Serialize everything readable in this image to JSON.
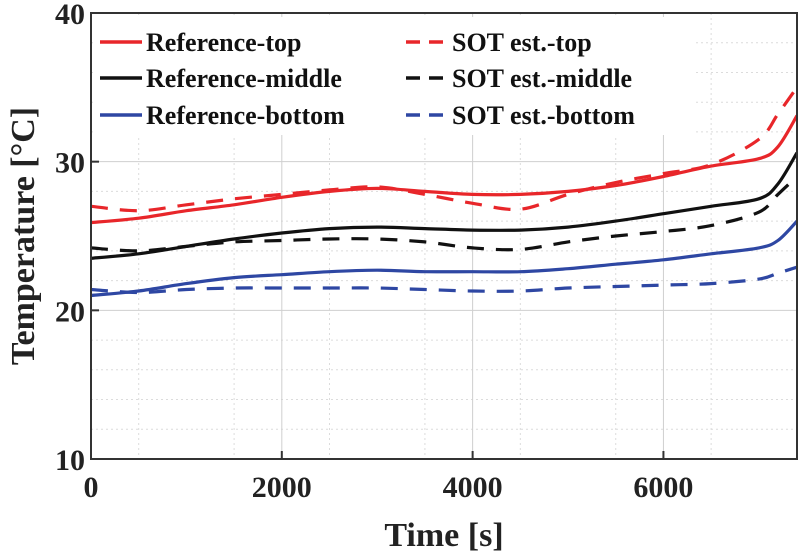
{
  "chart_data": {
    "type": "line",
    "xlabel": "Time [s]",
    "ylabel": "Temperature [°C]",
    "xlim": [
      0,
      7400
    ],
    "ylim": [
      10,
      40
    ],
    "xticks": [
      "0",
      "2000",
      "4000",
      "6000"
    ],
    "yticks": [
      "10",
      "20",
      "30",
      "40"
    ],
    "grid": true,
    "minor_grid": true,
    "legend_position": "top-left",
    "x": [
      0,
      500,
      1000,
      1500,
      2000,
      2500,
      3000,
      3500,
      4000,
      4500,
      5000,
      5500,
      6000,
      6500,
      7000,
      7200,
      7400
    ],
    "series": [
      {
        "name": "Reference-top",
        "color": "#e8262a",
        "dash": "solid",
        "values": [
          25.9,
          26.2,
          26.7,
          27.1,
          27.6,
          28.0,
          28.2,
          28.0,
          27.8,
          27.8,
          28.0,
          28.4,
          29.0,
          29.7,
          30.2,
          31.0,
          33.1
        ]
      },
      {
        "name": "SOT est.-top",
        "color": "#e8262a",
        "dash": "dashed",
        "values": [
          27.0,
          26.7,
          27.1,
          27.5,
          27.8,
          28.1,
          28.3,
          27.8,
          27.2,
          26.8,
          27.8,
          28.6,
          29.2,
          29.8,
          31.5,
          33.2,
          35.0
        ]
      },
      {
        "name": "Reference-middle",
        "color": "#111111",
        "dash": "solid",
        "values": [
          23.5,
          23.8,
          24.3,
          24.8,
          25.2,
          25.5,
          25.6,
          25.5,
          25.4,
          25.4,
          25.6,
          26.0,
          26.5,
          27.0,
          27.5,
          28.5,
          30.6
        ]
      },
      {
        "name": "SOT est.-middle",
        "color": "#111111",
        "dash": "dashed",
        "values": [
          24.2,
          24.0,
          24.3,
          24.6,
          24.7,
          24.8,
          24.8,
          24.6,
          24.2,
          24.1,
          24.6,
          25.0,
          25.3,
          25.7,
          26.6,
          27.8,
          29.0
        ]
      },
      {
        "name": "Reference-bottom",
        "color": "#2e47a3",
        "dash": "solid",
        "values": [
          21.0,
          21.3,
          21.8,
          22.2,
          22.4,
          22.6,
          22.7,
          22.6,
          22.6,
          22.6,
          22.8,
          23.1,
          23.4,
          23.8,
          24.2,
          24.7,
          26.0
        ]
      },
      {
        "name": "SOT est.-bottom",
        "color": "#2e47a3",
        "dash": "dashed",
        "values": [
          21.4,
          21.2,
          21.4,
          21.5,
          21.5,
          21.5,
          21.5,
          21.4,
          21.3,
          21.3,
          21.5,
          21.6,
          21.7,
          21.8,
          22.1,
          22.5,
          22.9
        ]
      }
    ]
  }
}
